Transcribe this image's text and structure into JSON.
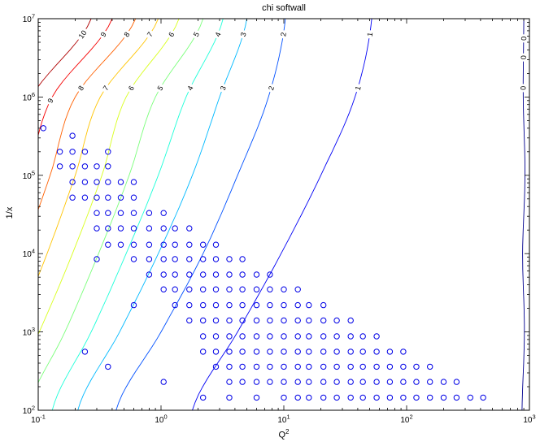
{
  "title": "chi softwall",
  "axis_labels": {
    "x_base": "Q",
    "x_exp": "2",
    "y": "1/x"
  },
  "chart_data": {
    "type": "scatter+contour",
    "title": "chi softwall",
    "xlabel": "Q^2",
    "ylabel": "1/x",
    "x_scale": "log",
    "y_scale": "log",
    "xlim": [
      0.1,
      1000
    ],
    "ylim": [
      100,
      10000000
    ],
    "grid": false,
    "frame_color": "#000000",
    "contour_label_color": "#000000",
    "marker": {
      "shape": "circle",
      "color": "#0000e6",
      "radius": 3.2
    },
    "x_ticks": [
      {
        "value": 0.1,
        "base": "10",
        "exp": "-1"
      },
      {
        "value": 1,
        "base": "10",
        "exp": "0"
      },
      {
        "value": 10,
        "base": "10",
        "exp": "1"
      },
      {
        "value": 100,
        "base": "10",
        "exp": "2"
      },
      {
        "value": 1000,
        "base": "10",
        "exp": "3"
      }
    ],
    "y_ticks": [
      {
        "value": 100,
        "base": "10",
        "exp": "2"
      },
      {
        "value": 1000,
        "base": "10",
        "exp": "3"
      },
      {
        "value": 10000,
        "base": "10",
        "exp": "4"
      },
      {
        "value": 100000,
        "base": "10",
        "exp": "5"
      },
      {
        "value": 1000000,
        "base": "10",
        "exp": "6"
      },
      {
        "value": 10000000,
        "base": "10",
        "exp": "7"
      }
    ],
    "contour_anchor_invx": [
      100,
      1000,
      10000,
      100000,
      1000000,
      10000000
    ],
    "contours": [
      {
        "level": 0,
        "color": "#00008f",
        "anchors_q2": [
          870,
          910,
          880,
          920,
          890,
          900
        ],
        "label_invx": [
          1300000,
          3200000,
          5600000
        ]
      },
      {
        "level": 1,
        "color": "#0000f5",
        "anchors_q2": [
          1.8,
          4.2,
          9.5,
          20,
          38,
          52
        ],
        "label_invx": [
          1300000,
          6300000
        ]
      },
      {
        "level": 2,
        "color": "#0050ff",
        "anchors_q2": [
          0.43,
          1.0,
          2.2,
          4.2,
          7.5,
          10.3
        ],
        "label_invx": [
          1300000,
          6300000
        ]
      },
      {
        "level": 3,
        "color": "#00b9ff",
        "anchors_q2": [
          0.21,
          0.46,
          0.95,
          1.8,
          3.0,
          5.0
        ],
        "label_invx": [
          1300000,
          6300000
        ]
      },
      {
        "level": 4,
        "color": "#1cffd9",
        "anchors_q2": [
          0.13,
          0.27,
          0.52,
          0.95,
          1.6,
          3.2
        ],
        "label_invx": [
          1300000,
          6300000
        ]
      },
      {
        "level": 5,
        "color": "#7bff7b",
        "anchors_q2": [
          0.082,
          0.165,
          0.31,
          0.55,
          0.9,
          2.2
        ],
        "label_invx": [
          1300000,
          6300000
        ]
      },
      {
        "level": 6,
        "color": "#d9ff1c",
        "anchors_q2": [
          0.052,
          0.102,
          0.19,
          0.33,
          0.52,
          1.4
        ],
        "label_invx": [
          1300000,
          6300000
        ]
      },
      {
        "level": 7,
        "color": "#ffc400",
        "anchors_q2": [
          0.033,
          0.065,
          0.118,
          0.2,
          0.32,
          0.95
        ],
        "label_invx": [
          1300000,
          6300000
        ]
      },
      {
        "level": 8,
        "color": "#ff6000",
        "anchors_q2": [
          0.021,
          0.042,
          0.074,
          0.125,
          0.2,
          0.62
        ],
        "label_invx": [
          1300000,
          6300000
        ]
      },
      {
        "level": 9,
        "color": "#f50000",
        "anchors_q2": [
          0.013,
          0.027,
          0.048,
          0.082,
          0.13,
          0.4
        ],
        "label_invx": [
          900000,
          6300000
        ]
      },
      {
        "level": 10,
        "color": "#af0000",
        "anchors_q2": [
          0.009,
          0.017,
          0.031,
          0.055,
          0.088,
          0.27
        ],
        "label_invx": [
          6300000
        ]
      }
    ],
    "point_columns": [
      {
        "q2": 0.11,
        "invx": [
          400000
        ]
      },
      {
        "q2": 0.15,
        "invx": [
          200000,
          130000
        ]
      },
      {
        "q2": 0.19,
        "invx": [
          320000,
          200000,
          130000,
          82000,
          52000
        ]
      },
      {
        "q2": 0.24,
        "invx": [
          200000,
          130000,
          82000,
          52000,
          560
        ]
      },
      {
        "q2": 0.3,
        "invx": [
          130000,
          82000,
          52000,
          33000,
          21000,
          8500
        ]
      },
      {
        "q2": 0.37,
        "invx": [
          200000,
          130000,
          82000,
          52000,
          33000,
          21000,
          13000,
          360
        ]
      },
      {
        "q2": 0.47,
        "invx": [
          82000,
          52000,
          33000,
          21000,
          13000
        ]
      },
      {
        "q2": 0.6,
        "invx": [
          82000,
          52000,
          33000,
          21000,
          13000,
          8500,
          2200
        ]
      },
      {
        "q2": 0.8,
        "invx": [
          33000,
          21000,
          13000,
          8500,
          5400
        ]
      },
      {
        "q2": 1.05,
        "invx": [
          33000,
          21000,
          13000,
          8500,
          5400,
          3500,
          230
        ]
      },
      {
        "q2": 1.3,
        "invx": [
          21000,
          13000,
          8500,
          5400,
          3500,
          2200
        ]
      },
      {
        "q2": 1.7,
        "invx": [
          21000,
          13000,
          8500,
          5400,
          3500,
          2200,
          1400
        ]
      },
      {
        "q2": 2.2,
        "invx": [
          13000,
          8500,
          5400,
          3500,
          2200,
          1400,
          880,
          560,
          145
        ]
      },
      {
        "q2": 2.8,
        "invx": [
          13000,
          8500,
          5400,
          3500,
          2200,
          1400,
          880,
          560,
          360
        ]
      },
      {
        "q2": 3.6,
        "invx": [
          8500,
          5400,
          3500,
          2200,
          1400,
          880,
          560,
          360,
          230,
          145
        ]
      },
      {
        "q2": 4.6,
        "invx": [
          8500,
          5400,
          3500,
          2200,
          1400,
          880,
          560,
          360,
          230
        ]
      },
      {
        "q2": 6.0,
        "invx": [
          5400,
          3500,
          2200,
          1400,
          880,
          560,
          360,
          230,
          145
        ]
      },
      {
        "q2": 7.7,
        "invx": [
          5400,
          3500,
          2200,
          1400,
          880,
          560,
          360,
          230
        ]
      },
      {
        "q2": 10,
        "invx": [
          3500,
          2200,
          1400,
          880,
          560,
          360,
          230,
          145
        ]
      },
      {
        "q2": 13,
        "invx": [
          3500,
          2200,
          1400,
          880,
          560,
          360,
          230,
          145
        ]
      },
      {
        "q2": 16,
        "invx": [
          2200,
          1400,
          880,
          560,
          360,
          230,
          145
        ]
      },
      {
        "q2": 21,
        "invx": [
          2200,
          1400,
          880,
          560,
          360,
          230,
          145
        ]
      },
      {
        "q2": 27,
        "invx": [
          1400,
          880,
          560,
          360,
          230,
          145
        ]
      },
      {
        "q2": 35,
        "invx": [
          1400,
          880,
          560,
          360,
          230,
          145
        ]
      },
      {
        "q2": 44,
        "invx": [
          880,
          560,
          360,
          230,
          145
        ]
      },
      {
        "q2": 57,
        "invx": [
          880,
          560,
          360,
          230,
          145
        ]
      },
      {
        "q2": 73,
        "invx": [
          560,
          360,
          230,
          145
        ]
      },
      {
        "q2": 94,
        "invx": [
          560,
          360,
          230,
          145
        ]
      },
      {
        "q2": 120,
        "invx": [
          360,
          230,
          145
        ]
      },
      {
        "q2": 155,
        "invx": [
          360,
          230,
          145
        ]
      },
      {
        "q2": 200,
        "invx": [
          230,
          145
        ]
      },
      {
        "q2": 255,
        "invx": [
          230,
          145
        ]
      },
      {
        "q2": 330,
        "invx": [
          145
        ]
      },
      {
        "q2": 420,
        "invx": [
          145
        ]
      }
    ]
  }
}
